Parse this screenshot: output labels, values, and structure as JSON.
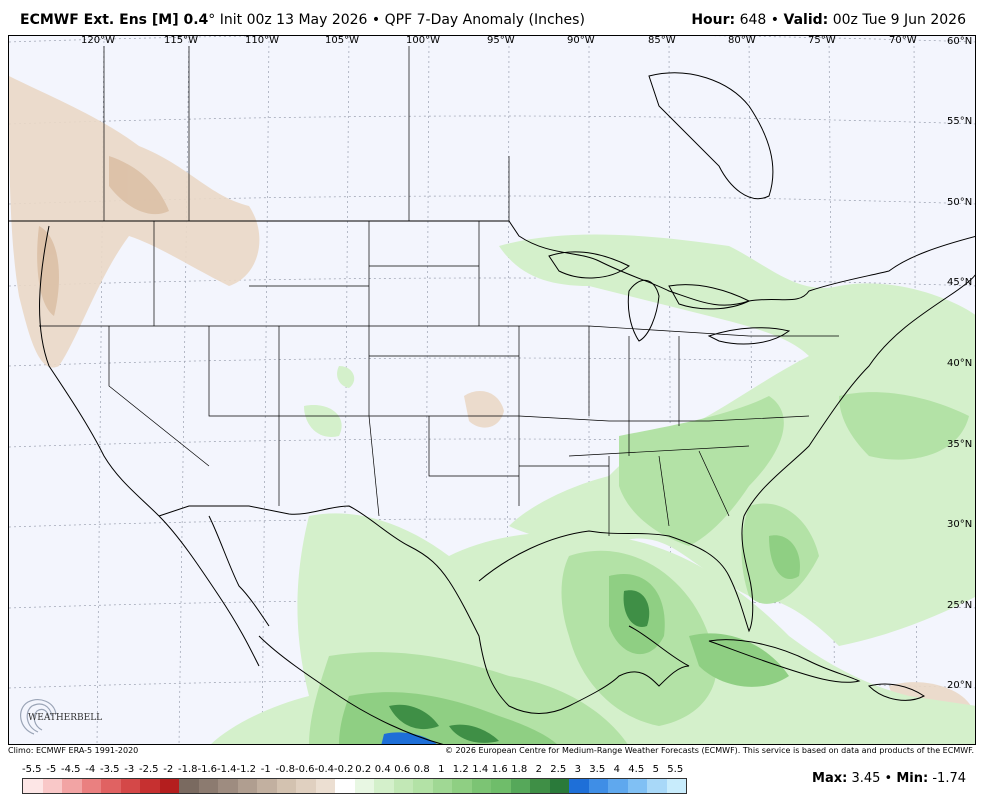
{
  "header": {
    "model": "ECMWF Ext. Ens [M] 0.4",
    "degree": "°",
    "init": "Init 00z 13 May 2026",
    "separator": "•",
    "product": "QPF 7-Day Anomaly (Inches)",
    "hour_label": "Hour:",
    "hour_value": "648",
    "valid_label": "Valid:",
    "valid_value": "00z Tue 9 Jun 2026"
  },
  "map": {
    "lon_labels": [
      "120°W",
      "115°W",
      "110°W",
      "105°W",
      "100°W",
      "95°W",
      "90°W",
      "85°W",
      "80°W",
      "75°W",
      "70°W"
    ],
    "lat_labels": [
      "60°N",
      "55°N",
      "50°N",
      "45°N",
      "40°N",
      "35°N",
      "30°N",
      "25°N",
      "20°N"
    ],
    "ocean_color": "#f3f5fd",
    "wet_colors": [
      "#d4f0cb",
      "#b3e2a6",
      "#8fcf83",
      "#6fbd6a",
      "#3f8f46",
      "#1e6fd8"
    ],
    "dry_colors": [
      "#ead8c6",
      "#dcc0a6"
    ]
  },
  "footer": {
    "climo": "Climo: ECMWF ERA-5 1991-2020",
    "copyright": "© 2026 European Centre for Medium-Range Weather Forecasts (ECMWF). This service is based on data and products of the ECMWF."
  },
  "legend": {
    "labels": [
      "-5.5",
      "-5",
      "-4.5",
      "-4",
      "-3.5",
      "-3",
      "-2.5",
      "-2",
      "-1.8",
      "-1.6",
      "-1.4",
      "-1.2",
      "-1",
      "-0.8",
      "-0.6",
      "-0.4",
      "-0.2",
      "0.2",
      "0.4",
      "0.6",
      "0.8",
      "1",
      "1.2",
      "1.4",
      "1.6",
      "1.8",
      "2",
      "2.5",
      "3",
      "3.5",
      "4",
      "4.5",
      "5",
      "5.5"
    ],
    "colors": [
      "#fde6e6",
      "#f9c8c8",
      "#f2a4a4",
      "#ea8080",
      "#e06262",
      "#d44848",
      "#c63030",
      "#b41e1e",
      "#7a6a60",
      "#8c7b70",
      "#9e8c80",
      "#b09e90",
      "#c2b0a0",
      "#d3c2b0",
      "#e0d0c0",
      "#ecdfd2",
      "#ffffff",
      "#e8f7e3",
      "#d4f0cb",
      "#c2e8b6",
      "#b3e2a6",
      "#a0d894",
      "#8fcf83",
      "#7cc474",
      "#6fbd6a",
      "#56a85a",
      "#3f8f46",
      "#2a7a3a",
      "#1e6fd8",
      "#3f8ee6",
      "#5fa8ee",
      "#80c0f4",
      "#a8d8f8",
      "#c8ecfc"
    ]
  },
  "stats": {
    "max_label": "Max:",
    "max_value": "3.45",
    "min_label": "Min:",
    "min_value": "-1.74"
  },
  "logo": {
    "text": "WEATHERBELL"
  }
}
